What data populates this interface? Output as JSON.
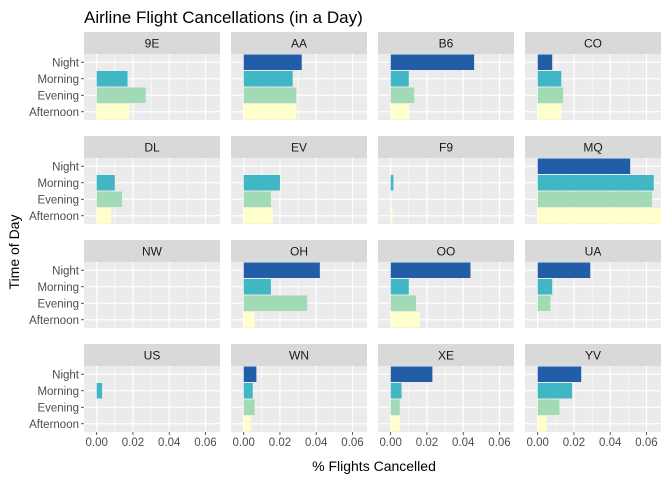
{
  "chart_data": {
    "type": "bar",
    "orientation": "horizontal",
    "title": "Airline Flight Cancellations (in a Day)",
    "xlabel": "% Flights Cancelled",
    "ylabel": "Time of Day",
    "xlim": [
      -0.007,
      0.068
    ],
    "xticks": [
      0.0,
      0.02,
      0.04,
      0.06
    ],
    "xtick_labels": [
      "0.00",
      "0.02",
      "0.04",
      "0.06"
    ],
    "categories": [
      "Night",
      "Morning",
      "Evening",
      "Afternoon"
    ],
    "colors": {
      "Night": "#225ea8",
      "Morning": "#41b6c4",
      "Evening": "#a1dab4",
      "Afternoon": "#ffffcc"
    },
    "panel_bg": "#ebebeb",
    "strip_bg": "#d9d9d9",
    "grid_color": "#ffffff",
    "grid": true,
    "legend": "none",
    "facets": [
      {
        "name": "9E",
        "values": [
          0,
          0.017,
          0.027,
          0.018
        ]
      },
      {
        "name": "AA",
        "values": [
          0.032,
          0.027,
          0.029,
          0.029
        ]
      },
      {
        "name": "B6",
        "values": [
          0.046,
          0.01,
          0.013,
          0.01
        ]
      },
      {
        "name": "CO",
        "values": [
          0.008,
          0.013,
          0.014,
          0.013
        ]
      },
      {
        "name": "DL",
        "values": [
          0,
          0.01,
          0.014,
          0.008
        ]
      },
      {
        "name": "EV",
        "values": [
          0,
          0.02,
          0.015,
          0.016
        ]
      },
      {
        "name": "F9",
        "values": [
          0,
          0.0015,
          0,
          0.001
        ]
      },
      {
        "name": "MQ",
        "values": [
          0.051,
          0.064,
          0.063,
          0.068
        ]
      },
      {
        "name": "NW",
        "values": [
          0,
          0,
          0,
          0
        ]
      },
      {
        "name": "OH",
        "values": [
          0.042,
          0.015,
          0.035,
          0.006
        ]
      },
      {
        "name": "OO",
        "values": [
          0.044,
          0.01,
          0.014,
          0.016
        ]
      },
      {
        "name": "UA",
        "values": [
          0.029,
          0.008,
          0.007,
          0
        ]
      },
      {
        "name": "US",
        "values": [
          0,
          0.003,
          0,
          0
        ]
      },
      {
        "name": "WN",
        "values": [
          0.007,
          0.005,
          0.006,
          0.004
        ]
      },
      {
        "name": "XE",
        "values": [
          0.023,
          0.006,
          0.005,
          0.005
        ]
      },
      {
        "name": "YV",
        "values": [
          0.024,
          0.019,
          0.012,
          0.005
        ]
      }
    ]
  }
}
